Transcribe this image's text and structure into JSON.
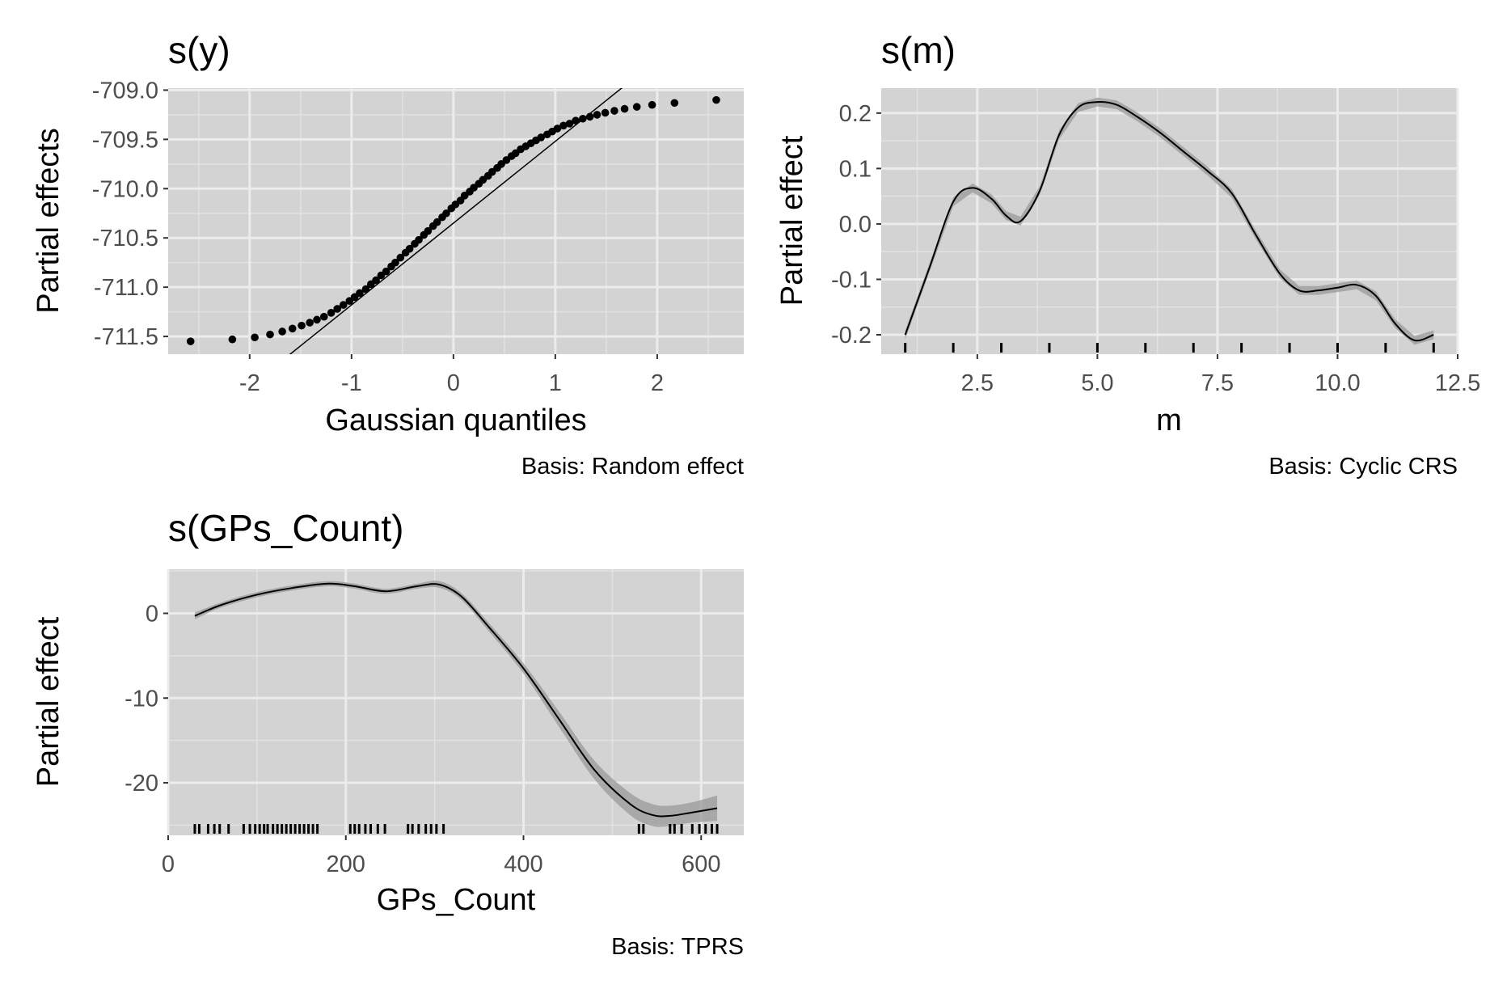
{
  "chart_data": [
    {
      "type": "scatter",
      "title": "s(y)",
      "xlabel": "Gaussian quantiles",
      "ylabel": "Partial effects",
      "caption": "Basis: Random effect",
      "xlim": [
        -2.8,
        2.85
      ],
      "ylim": [
        -711.68,
        -708.98
      ],
      "xticks": [
        -2,
        -1,
        0,
        1,
        2
      ],
      "xtick_labels": [
        "-2",
        "-1",
        "0",
        "1",
        "2"
      ],
      "yticks": [
        -711.5,
        -711.0,
        -710.5,
        -710.0,
        -709.5,
        -709.0
      ],
      "ytick_labels": [
        "-711.5",
        "-711.0",
        "-710.5",
        "-710.0",
        "-709.5",
        "-709.0"
      ],
      "grid": true,
      "reference_line": {
        "intercept": -710.35,
        "slope": 0.83
      },
      "points": {
        "x": [
          -2.58,
          -2.17,
          -1.95,
          -1.8,
          -1.68,
          -1.58,
          -1.49,
          -1.41,
          -1.34,
          -1.27,
          -1.2,
          -1.14,
          -1.08,
          -1.02,
          -0.97,
          -0.92,
          -0.86,
          -0.81,
          -0.76,
          -0.71,
          -0.66,
          -0.61,
          -0.57,
          -0.52,
          -0.47,
          -0.43,
          -0.38,
          -0.34,
          -0.29,
          -0.25,
          -0.2,
          -0.16,
          -0.11,
          -0.07,
          -0.02,
          0.02,
          0.07,
          0.11,
          0.16,
          0.2,
          0.25,
          0.29,
          0.34,
          0.38,
          0.43,
          0.47,
          0.52,
          0.57,
          0.61,
          0.66,
          0.71,
          0.76,
          0.81,
          0.86,
          0.92,
          0.97,
          1.02,
          1.08,
          1.14,
          1.2,
          1.27,
          1.34,
          1.41,
          1.49,
          1.58,
          1.68,
          1.8,
          1.95,
          2.17,
          2.58
        ],
        "y": [
          -711.55,
          -711.53,
          -711.51,
          -711.48,
          -711.45,
          -711.42,
          -711.39,
          -711.36,
          -711.33,
          -711.3,
          -711.26,
          -711.22,
          -711.18,
          -711.14,
          -711.1,
          -711.06,
          -711.02,
          -710.97,
          -710.93,
          -710.88,
          -710.84,
          -710.79,
          -710.75,
          -710.7,
          -710.65,
          -710.61,
          -710.56,
          -710.52,
          -710.47,
          -710.43,
          -710.38,
          -710.34,
          -710.29,
          -710.25,
          -710.2,
          -710.16,
          -710.12,
          -710.07,
          -710.03,
          -709.99,
          -709.95,
          -709.91,
          -709.87,
          -709.83,
          -709.79,
          -709.75,
          -709.71,
          -709.67,
          -709.64,
          -709.6,
          -709.57,
          -709.54,
          -709.51,
          -709.48,
          -709.45,
          -709.42,
          -709.39,
          -709.36,
          -709.34,
          -709.31,
          -709.29,
          -709.27,
          -709.25,
          -709.23,
          -709.21,
          -709.19,
          -709.17,
          -709.15,
          -709.13,
          -709.1
        ]
      }
    },
    {
      "type": "line",
      "title": "s(m)",
      "xlabel": "m",
      "ylabel": "Partial effect",
      "caption": "Basis: Cyclic CRS",
      "xlim": [
        0.5,
        12.5
      ],
      "ylim": [
        -0.235,
        0.245
      ],
      "xticks": [
        2.5,
        5.0,
        7.5,
        10.0,
        12.5
      ],
      "xtick_labels": [
        "2.5",
        "5.0",
        "7.5",
        "10.0",
        "12.5"
      ],
      "yticks": [
        -0.2,
        -0.1,
        0.0,
        0.1,
        0.2
      ],
      "ytick_labels": [
        "-0.2",
        "-0.1",
        "0.0",
        "0.1",
        "0.2"
      ],
      "grid": true,
      "x": [
        1.0,
        1.5,
        2.0,
        2.4,
        2.8,
        3.1,
        3.4,
        3.8,
        4.2,
        4.6,
        5.0,
        5.4,
        5.8,
        6.3,
        6.8,
        7.3,
        7.8,
        8.3,
        8.8,
        9.2,
        9.6,
        10.0,
        10.4,
        10.8,
        11.2,
        11.6,
        12.0
      ],
      "y": [
        -0.2,
        -0.08,
        0.04,
        0.065,
        0.045,
        0.015,
        0.005,
        0.06,
        0.16,
        0.21,
        0.22,
        0.215,
        0.195,
        0.165,
        0.13,
        0.095,
        0.055,
        -0.02,
        -0.09,
        -0.12,
        -0.12,
        -0.115,
        -0.11,
        -0.13,
        -0.18,
        -0.21,
        -0.2
      ],
      "band": [
        -0.21,
        -0.09,
        0.032,
        0.058,
        0.037,
        0.006,
        -0.004,
        0.052,
        0.152,
        0.203,
        0.213,
        0.208,
        0.188,
        0.157,
        0.122,
        0.087,
        0.047,
        -0.028,
        -0.098,
        -0.128,
        -0.128,
        -0.123,
        -0.118,
        -0.138,
        -0.188,
        -0.218,
        -0.21,
        -0.19,
        -0.2,
        -0.17,
        -0.122,
        -0.102,
        -0.107,
        -0.112,
        -0.112,
        -0.082,
        -0.012,
        0.063,
        0.103,
        0.138,
        0.173,
        0.202,
        0.222,
        0.227,
        0.217,
        0.168,
        0.068,
        0.014,
        0.024,
        0.053,
        0.072,
        0.048,
        -0.07
      ],
      "rug": [
        1,
        2,
        3,
        4,
        5,
        6,
        7,
        8,
        9,
        10,
        11,
        12
      ]
    },
    {
      "type": "line",
      "title": "s(GPs_Count)",
      "xlabel": "GPs_Count",
      "ylabel": "Partial effect",
      "caption": "Basis: TPRS",
      "xlim": [
        0,
        648
      ],
      "ylim": [
        -26.2,
        5.2
      ],
      "xticks": [
        0,
        200,
        400,
        600
      ],
      "xtick_labels": [
        "0",
        "200",
        "400",
        "600"
      ],
      "yticks": [
        -20,
        -10,
        0
      ],
      "ytick_labels": [
        "-20",
        "-10",
        "0"
      ],
      "grid": true,
      "x": [
        30,
        60,
        100,
        140,
        180,
        210,
        245,
        280,
        305,
        330,
        360,
        400,
        440,
        480,
        520,
        545,
        565,
        590,
        618
      ],
      "y": [
        -0.3,
        1.0,
        2.2,
        3.0,
        3.5,
        3.2,
        2.6,
        3.2,
        3.4,
        2.0,
        -1.5,
        -6.5,
        -12.5,
        -18.5,
        -22.5,
        -23.8,
        -23.9,
        -23.5,
        -23.0
      ],
      "band_upper": [
        0.1,
        1.3,
        2.5,
        3.3,
        3.8,
        3.5,
        2.9,
        3.5,
        3.8,
        2.4,
        -1.0,
        -5.9,
        -11.6,
        -17.4,
        -21.2,
        -22.5,
        -22.7,
        -22.3,
        -21.5
      ],
      "band_lower": [
        -0.7,
        0.7,
        1.9,
        2.7,
        3.2,
        2.9,
        2.3,
        2.9,
        3.0,
        1.6,
        -2.0,
        -7.1,
        -13.4,
        -19.6,
        -23.8,
        -25.1,
        -25.1,
        -24.7,
        -24.5
      ],
      "rug": [
        30,
        35,
        45,
        52,
        58,
        68,
        85,
        92,
        98,
        103,
        108,
        112,
        118,
        123,
        128,
        133,
        138,
        143,
        148,
        153,
        158,
        163,
        168,
        205,
        210,
        215,
        222,
        228,
        236,
        244,
        270,
        275,
        282,
        290,
        296,
        302,
        310,
        530,
        535,
        565,
        570,
        578,
        590,
        598,
        605,
        612,
        618
      ]
    }
  ]
}
